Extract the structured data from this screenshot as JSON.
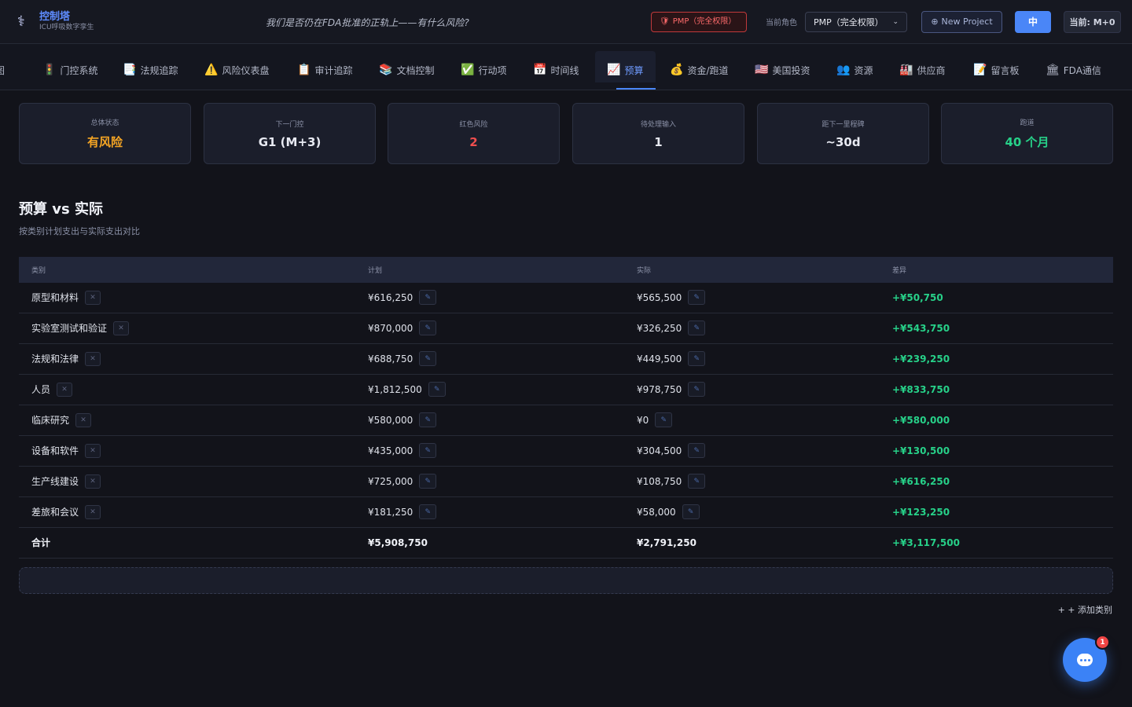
{
  "header": {
    "brand_title": "控制塔",
    "brand_subtitle": "ICU呼吸数字孪生",
    "tagline": "我们是否仍在FDA批准的正轨上——有什么风险?",
    "pmp_badge": "PMP（完全权限）",
    "role_label": "当前角色",
    "role_value": "PMP（完全权限）",
    "new_project": "New Project",
    "lang": "中",
    "current": "当前: M+0"
  },
  "tabs": [
    {
      "label": "图",
      "icon": "map-icon"
    },
    {
      "label": "门控系统",
      "icon": "traffic-light-icon"
    },
    {
      "label": "法规追踪",
      "icon": "document-icon"
    },
    {
      "label": "风险仪表盘",
      "icon": "warning-icon"
    },
    {
      "label": "审计追踪",
      "icon": "clipboard-icon"
    },
    {
      "label": "文档控制",
      "icon": "books-icon"
    },
    {
      "label": "行动项",
      "icon": "check-icon"
    },
    {
      "label": "时间线",
      "icon": "calendar-icon"
    },
    {
      "label": "预算",
      "icon": "chart-icon"
    },
    {
      "label": "资金/跑道",
      "icon": "money-bag-icon"
    },
    {
      "label": "美国投资",
      "icon": "us-flag-icon"
    },
    {
      "label": "资源",
      "icon": "people-icon"
    },
    {
      "label": "供应商",
      "icon": "factory-icon"
    },
    {
      "label": "留言板",
      "icon": "memo-icon"
    },
    {
      "label": "FDA通信",
      "icon": "building-icon"
    }
  ],
  "kpis": [
    {
      "label": "总体状态",
      "value": "有风险",
      "tone": "warn"
    },
    {
      "label": "下一门控",
      "value": "G1 (M+3)",
      "tone": "normal"
    },
    {
      "label": "红色风险",
      "value": "2",
      "tone": "danger"
    },
    {
      "label": "待处理输入",
      "value": "1",
      "tone": "normal"
    },
    {
      "label": "距下一里程碑",
      "value": "~30d",
      "tone": "normal"
    },
    {
      "label": "跑道",
      "value": "40 个月",
      "tone": "good"
    }
  ],
  "section": {
    "title": "预算 vs 实际",
    "subtitle": "按类别计划支出与实际支出对比"
  },
  "table": {
    "headers": [
      "类别",
      "计划",
      "实际",
      "差异"
    ],
    "rows": [
      {
        "category": "原型和材料",
        "planned": "¥616,250",
        "actual": "¥565,500",
        "variance": "+¥50,750"
      },
      {
        "category": "实验室测试和验证",
        "planned": "¥870,000",
        "actual": "¥326,250",
        "variance": "+¥543,750"
      },
      {
        "category": "法规和法律",
        "planned": "¥688,750",
        "actual": "¥449,500",
        "variance": "+¥239,250"
      },
      {
        "category": "人员",
        "planned": "¥1,812,500",
        "actual": "¥978,750",
        "variance": "+¥833,750"
      },
      {
        "category": "临床研究",
        "planned": "¥580,000",
        "actual": "¥0",
        "variance": "+¥580,000"
      },
      {
        "category": "设备和软件",
        "planned": "¥435,000",
        "actual": "¥304,500",
        "variance": "+¥130,500"
      },
      {
        "category": "生产线建设",
        "planned": "¥725,000",
        "actual": "¥108,750",
        "variance": "+¥616,250"
      },
      {
        "category": "差旅和会议",
        "planned": "¥181,250",
        "actual": "¥58,000",
        "variance": "+¥123,250"
      }
    ],
    "total": {
      "category": "合计",
      "planned": "¥5,908,750",
      "actual": "¥2,791,250",
      "variance": "+¥3,117,500"
    }
  },
  "add_category": "+ 添加类别",
  "chat": {
    "badge": "1"
  },
  "colors": {
    "accent": "#4a86f7",
    "positive": "#27d189",
    "warning": "#f5a524",
    "danger": "#f04e4e"
  }
}
